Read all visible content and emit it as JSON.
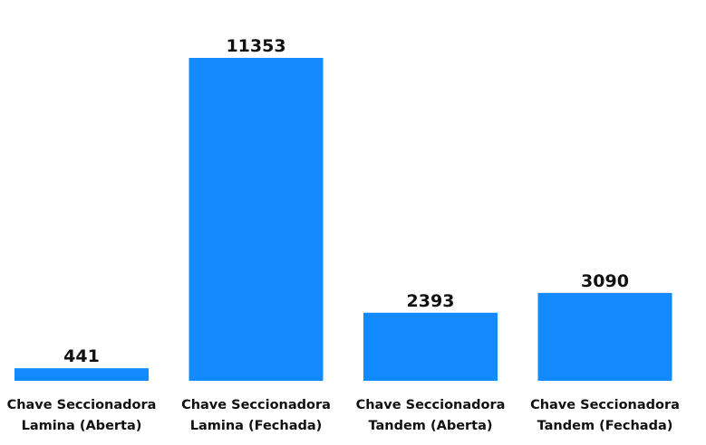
{
  "chart_data": {
    "type": "bar",
    "categories": [
      [
        "Chave Seccionadora",
        "Lamina (Aberta)"
      ],
      [
        "Chave Seccionadora",
        "Lamina (Fechada)"
      ],
      [
        "Chave Seccionadora",
        "Tandem (Aberta)"
      ],
      [
        "Chave Seccionadora",
        "Tandem (Fechada)"
      ]
    ],
    "values": [
      441,
      11353,
      2393,
      3090
    ],
    "value_labels": [
      "441",
      "11353",
      "2393",
      "3090"
    ],
    "bar_color": "#148AFF",
    "ylim": [
      0,
      11353
    ],
    "grid": false,
    "legend": "none",
    "title": "",
    "xlabel": "",
    "ylabel": ""
  }
}
